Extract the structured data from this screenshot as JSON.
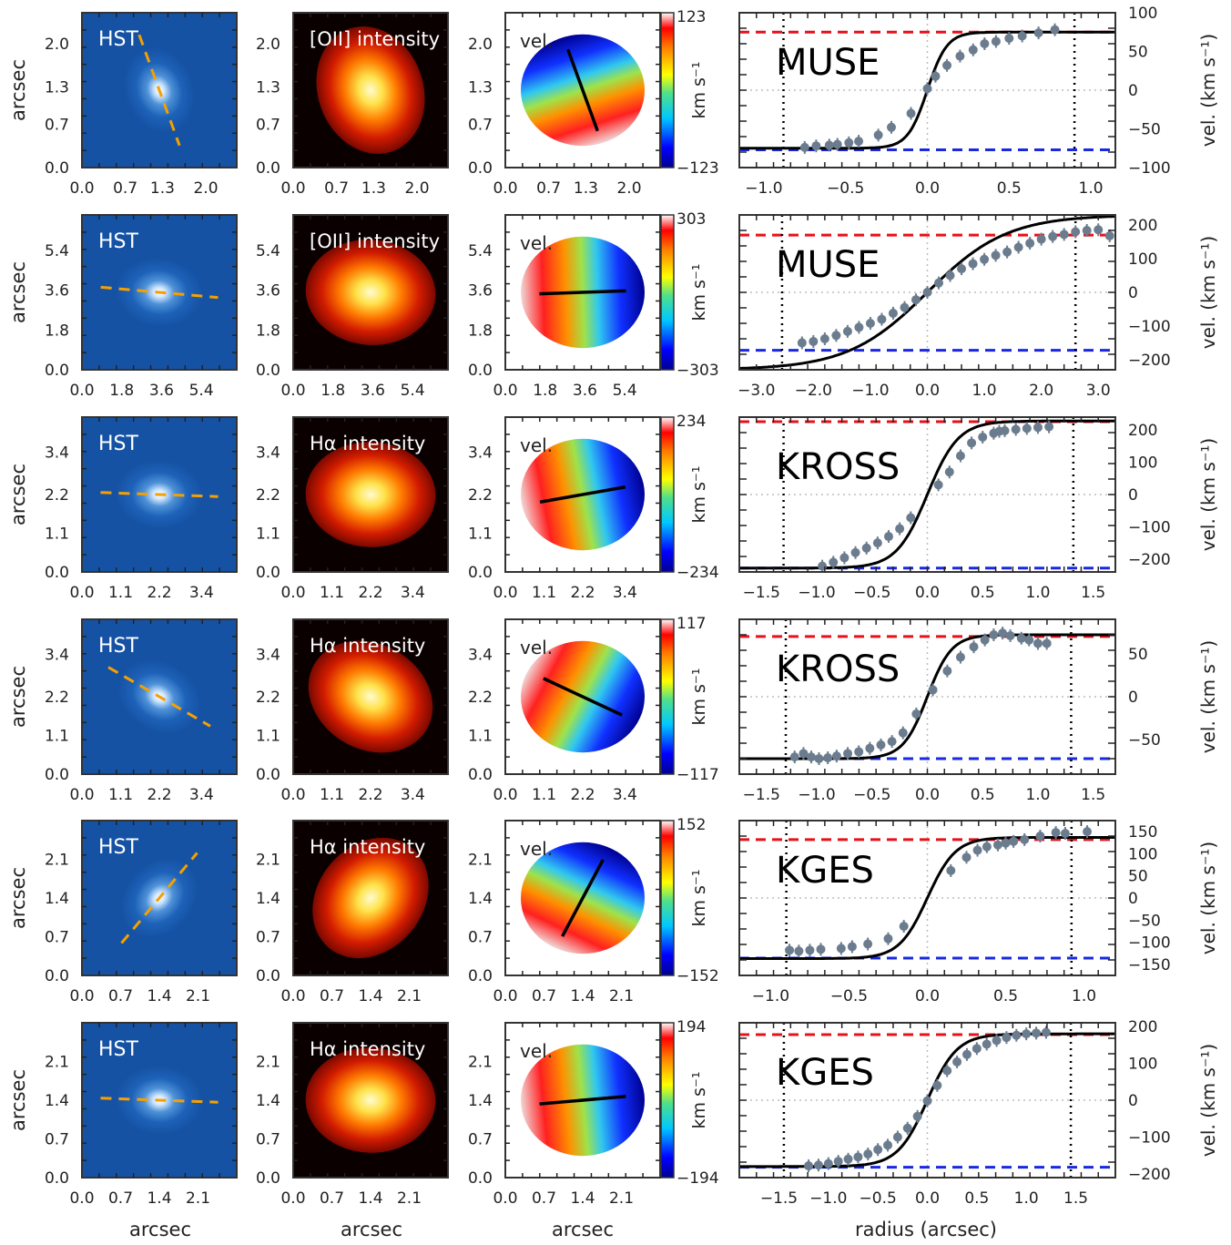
{
  "figure": {
    "bottom_xlabels": {
      "hst": "arcsec",
      "intensity": "arcsec",
      "velocity": "arcsec",
      "rotation": "radius (arcsec)"
    },
    "colorbar_label": "km s⁻¹",
    "rotation_ylabel": "vel. (km s⁻¹)",
    "hst_ylabel": "arcsec",
    "vel_label": "vel.",
    "hst_label": "HST"
  },
  "chart_data": [
    {
      "type": "scatter",
      "row": 1,
      "survey": "MUSE",
      "intensity_label": "[OII] intensity",
      "ticks": [
        "0.0",
        "0.7",
        "1.3",
        "2.0"
      ],
      "tick_values": [
        0.0,
        0.7,
        1.3,
        2.0
      ],
      "map_extent": 2.5,
      "velocity_range": [
        -123,
        123
      ],
      "colorbar_ticks": [
        "123",
        "−123"
      ],
      "pa_deg": -20,
      "hst_pa_deg": 160,
      "rotation": {
        "xlim": [
          -1.15,
          1.15
        ],
        "ylim": [
          -100,
          100
        ],
        "xticks": [
          -1.0,
          -0.5,
          0.0,
          0.5,
          1.0
        ],
        "xtick_labels": [
          "−1.0",
          "−0.5",
          "0.0",
          "0.5",
          "1.0"
        ],
        "yticks": [
          100,
          50,
          0,
          -50,
          -100
        ],
        "ytick_labels": [
          "100",
          "50",
          "0",
          "−50",
          "−100"
        ],
        "vmax": 75,
        "rt": 0.12,
        "red_line": 75,
        "blue_line": -77,
        "dotted_x": [
          -0.88,
          0.9
        ],
        "points": [
          [
            -0.75,
            -74
          ],
          [
            -0.68,
            -72
          ],
          [
            -0.6,
            -71
          ],
          [
            -0.55,
            -70
          ],
          [
            -0.48,
            -68
          ],
          [
            -0.42,
            -66
          ],
          [
            -0.3,
            -58
          ],
          [
            -0.22,
            -48
          ],
          [
            -0.1,
            -30
          ],
          [
            0.0,
            2
          ],
          [
            0.05,
            18
          ],
          [
            0.12,
            32
          ],
          [
            0.2,
            44
          ],
          [
            0.28,
            52
          ],
          [
            0.35,
            60
          ],
          [
            0.42,
            63
          ],
          [
            0.5,
            67
          ],
          [
            0.58,
            70
          ],
          [
            0.68,
            74
          ],
          [
            0.78,
            78
          ]
        ]
      }
    },
    {
      "type": "scatter",
      "row": 2,
      "survey": "MUSE",
      "intensity_label": "[OII] intensity",
      "ticks": [
        "0.0",
        "1.8",
        "3.6",
        "5.4"
      ],
      "tick_values": [
        0.0,
        1.8,
        3.6,
        5.4
      ],
      "map_extent": 7.0,
      "velocity_range": [
        -303,
        303
      ],
      "colorbar_ticks": [
        "303",
        "−303"
      ],
      "pa_deg": 88,
      "hst_pa_deg": 95,
      "rotation": {
        "xlim": [
          -3.3,
          3.3
        ],
        "ylim": [
          -230,
          230
        ],
        "xticks": [
          -3.0,
          -2.0,
          -1.0,
          0.0,
          1.0,
          2.0,
          3.0
        ],
        "xtick_labels": [
          "−3.0",
          "−2.0",
          "−1.0",
          "0.0",
          "1.0",
          "2.0",
          "3.0"
        ],
        "yticks": [
          200,
          100,
          0,
          -100,
          -200
        ],
        "ytick_labels": [
          "200",
          "100",
          "0",
          "−100",
          "−200"
        ],
        "vmax": 230,
        "rt": 1.4,
        "red_line": 170,
        "blue_line": -172,
        "dotted_x": [
          -2.55,
          2.6
        ],
        "points": [
          [
            -2.2,
            -150
          ],
          [
            -2.0,
            -146
          ],
          [
            -1.8,
            -138
          ],
          [
            -1.6,
            -128
          ],
          [
            -1.4,
            -116
          ],
          [
            -1.2,
            -104
          ],
          [
            -1.0,
            -92
          ],
          [
            -0.8,
            -80
          ],
          [
            -0.6,
            -62
          ],
          [
            -0.4,
            -45
          ],
          [
            -0.2,
            -22
          ],
          [
            0.0,
            0
          ],
          [
            0.2,
            28
          ],
          [
            0.4,
            50
          ],
          [
            0.6,
            70
          ],
          [
            0.8,
            85
          ],
          [
            1.0,
            98
          ],
          [
            1.2,
            110
          ],
          [
            1.4,
            120
          ],
          [
            1.6,
            134
          ],
          [
            1.8,
            146
          ],
          [
            2.0,
            158
          ],
          [
            2.2,
            166
          ],
          [
            2.4,
            172
          ],
          [
            2.6,
            180
          ],
          [
            2.8,
            184
          ],
          [
            3.0,
            186
          ],
          [
            3.2,
            168
          ]
        ]
      }
    },
    {
      "type": "scatter",
      "row": 3,
      "survey": "KROSS",
      "intensity_label": "Hα intensity",
      "ticks": [
        "0.0",
        "1.1",
        "2.2",
        "3.4"
      ],
      "tick_values": [
        0.0,
        1.1,
        2.2,
        3.4
      ],
      "map_extent": 4.4,
      "velocity_range": [
        -234,
        234
      ],
      "colorbar_ticks": [
        "234",
        "−234"
      ],
      "pa_deg": 80,
      "hst_pa_deg": 92,
      "rotation": {
        "xlim": [
          -1.7,
          1.7
        ],
        "ylim": [
          -240,
          240
        ],
        "xticks": [
          -1.5,
          -1.0,
          -0.5,
          0.0,
          0.5,
          1.0,
          1.5
        ],
        "xtick_labels": [
          "−1.5",
          "−1.0",
          "−0.5",
          "0.0",
          "0.5",
          "1.0",
          "1.5"
        ],
        "yticks": [
          200,
          100,
          0,
          -100,
          -200
        ],
        "ytick_labels": [
          "200",
          "100",
          "0",
          "−100",
          "−200"
        ],
        "vmax": 228,
        "rt": 0.28,
        "red_line": 226,
        "blue_line": -228,
        "dotted_x": [
          -1.3,
          1.32
        ],
        "points": [
          [
            -0.95,
            -222
          ],
          [
            -0.85,
            -210
          ],
          [
            -0.75,
            -196
          ],
          [
            -0.65,
            -180
          ],
          [
            -0.55,
            -166
          ],
          [
            -0.45,
            -150
          ],
          [
            -0.35,
            -130
          ],
          [
            -0.25,
            -106
          ],
          [
            -0.15,
            -72
          ],
          [
            0.1,
            30
          ],
          [
            0.2,
            70
          ],
          [
            0.3,
            120
          ],
          [
            0.4,
            160
          ],
          [
            0.5,
            178
          ],
          [
            0.6,
            190
          ],
          [
            0.65,
            196
          ],
          [
            0.7,
            198
          ],
          [
            0.8,
            202
          ],
          [
            0.9,
            205
          ],
          [
            1.0,
            208
          ],
          [
            1.1,
            210
          ]
        ]
      }
    },
    {
      "type": "scatter",
      "row": 4,
      "survey": "KROSS",
      "intensity_label": "Hα intensity",
      "ticks": [
        "0.0",
        "1.1",
        "2.2",
        "3.4"
      ],
      "tick_values": [
        0.0,
        1.1,
        2.2,
        3.4
      ],
      "map_extent": 4.4,
      "velocity_range": [
        -117,
        117
      ],
      "colorbar_ticks": [
        "117",
        "−117"
      ],
      "pa_deg": 115,
      "hst_pa_deg": 120,
      "rotation": {
        "xlim": [
          -1.7,
          1.7
        ],
        "ylim": [
          -90,
          90
        ],
        "xticks": [
          -1.5,
          -1.0,
          -0.5,
          0.0,
          0.5,
          1.0,
          1.5
        ],
        "xtick_labels": [
          "−1.5",
          "−1.0",
          "−0.5",
          "0.0",
          "0.5",
          "1.0",
          "1.5"
        ],
        "yticks": [
          50,
          0,
          -50
        ],
        "ytick_labels": [
          "50",
          "0",
          "−50"
        ],
        "vmax": 72,
        "rt": 0.22,
        "red_line": 70,
        "blue_line": -72,
        "dotted_x": [
          -1.28,
          1.3
        ],
        "points": [
          [
            -1.2,
            -70
          ],
          [
            -1.12,
            -66
          ],
          [
            -1.05,
            -70
          ],
          [
            -0.98,
            -72
          ],
          [
            -0.9,
            -71
          ],
          [
            -0.82,
            -69
          ],
          [
            -0.72,
            -66
          ],
          [
            -0.62,
            -64
          ],
          [
            -0.52,
            -60
          ],
          [
            -0.42,
            -56
          ],
          [
            -0.32,
            -52
          ],
          [
            -0.22,
            -42
          ],
          [
            -0.1,
            -20
          ],
          [
            0.05,
            8
          ],
          [
            0.18,
            30
          ],
          [
            0.3,
            46
          ],
          [
            0.42,
            58
          ],
          [
            0.52,
            66
          ],
          [
            0.6,
            72
          ],
          [
            0.68,
            74
          ],
          [
            0.75,
            71
          ],
          [
            0.85,
            68
          ],
          [
            0.92,
            66
          ],
          [
            1.0,
            62
          ],
          [
            1.08,
            62
          ]
        ]
      }
    },
    {
      "type": "scatter",
      "row": 5,
      "survey": "KGES",
      "intensity_label": "Hα intensity",
      "ticks": [
        "0.0",
        "0.7",
        "1.4",
        "2.1"
      ],
      "tick_values": [
        0.0,
        0.7,
        1.4,
        2.1
      ],
      "map_extent": 2.8,
      "velocity_range": [
        -152,
        152
      ],
      "colorbar_ticks": [
        "152",
        "−152"
      ],
      "pa_deg": 28,
      "hst_pa_deg": 40,
      "rotation": {
        "xlim": [
          -1.2,
          1.2
        ],
        "ylim": [
          -175,
          175
        ],
        "xticks": [
          -1.0,
          -0.5,
          0.0,
          0.5,
          1.0
        ],
        "xtick_labels": [
          "−1.0",
          "−0.5",
          "0.0",
          "0.5",
          "1.0"
        ],
        "yticks": [
          150,
          100,
          50,
          0,
          -50,
          -100,
          -150
        ],
        "ytick_labels": [
          "150",
          "100",
          "50",
          "0",
          "−50",
          "−100",
          "−150"
        ],
        "vmax": 137,
        "rt": 0.18,
        "red_line": 132,
        "blue_line": -136,
        "dotted_x": [
          -0.9,
          0.92
        ],
        "points": [
          [
            -0.88,
            -118
          ],
          [
            -0.82,
            -120
          ],
          [
            -0.75,
            -118
          ],
          [
            -0.68,
            -116
          ],
          [
            -0.55,
            -114
          ],
          [
            -0.48,
            -110
          ],
          [
            -0.38,
            -104
          ],
          [
            -0.25,
            -92
          ],
          [
            -0.15,
            -64
          ],
          [
            0.15,
            62
          ],
          [
            0.25,
            92
          ],
          [
            0.32,
            108
          ],
          [
            0.38,
            116
          ],
          [
            0.45,
            120
          ],
          [
            0.5,
            124
          ],
          [
            0.55,
            128
          ],
          [
            0.62,
            132
          ],
          [
            0.72,
            140
          ],
          [
            0.82,
            148
          ],
          [
            0.88,
            146
          ],
          [
            1.02,
            150
          ]
        ]
      }
    },
    {
      "type": "scatter",
      "row": 6,
      "survey": "KGES",
      "intensity_label": "Hα intensity",
      "ticks": [
        "0.0",
        "0.7",
        "1.4",
        "2.1"
      ],
      "tick_values": [
        0.0,
        0.7,
        1.4,
        2.1
      ],
      "map_extent": 2.8,
      "velocity_range": [
        -194,
        194
      ],
      "colorbar_ticks": [
        "194",
        "−194"
      ],
      "pa_deg": 85,
      "hst_pa_deg": 92,
      "rotation": {
        "xlim": [
          -1.9,
          1.9
        ],
        "ylim": [
          -210,
          210
        ],
        "xticks": [
          -1.5,
          -1.0,
          -0.5,
          0.0,
          0.5,
          1.0,
          1.5
        ],
        "xtick_labels": [
          "−1.5",
          "−1.0",
          "−0.5",
          "0.0",
          "0.5",
          "1.0",
          "1.5"
        ],
        "yticks": [
          200,
          100,
          0,
          -100,
          -200
        ],
        "ytick_labels": [
          "200",
          "100",
          "0",
          "−100",
          "−200"
        ],
        "vmax": 180,
        "rt": 0.3,
        "red_line": 178,
        "blue_line": -182,
        "dotted_x": [
          -1.45,
          1.45
        ],
        "points": [
          [
            -1.2,
            -178
          ],
          [
            -1.1,
            -176
          ],
          [
            -1.0,
            -172
          ],
          [
            -0.9,
            -166
          ],
          [
            -0.8,
            -160
          ],
          [
            -0.7,
            -154
          ],
          [
            -0.6,
            -146
          ],
          [
            -0.5,
            -134
          ],
          [
            -0.4,
            -122
          ],
          [
            -0.3,
            -100
          ],
          [
            -0.2,
            -76
          ],
          [
            -0.1,
            -44
          ],
          [
            0.0,
            -2
          ],
          [
            0.1,
            40
          ],
          [
            0.2,
            80
          ],
          [
            0.3,
            104
          ],
          [
            0.4,
            124
          ],
          [
            0.5,
            140
          ],
          [
            0.6,
            152
          ],
          [
            0.7,
            162
          ],
          [
            0.8,
            170
          ],
          [
            0.9,
            176
          ],
          [
            1.0,
            180
          ],
          [
            1.1,
            182
          ],
          [
            1.2,
            184
          ]
        ]
      }
    }
  ]
}
